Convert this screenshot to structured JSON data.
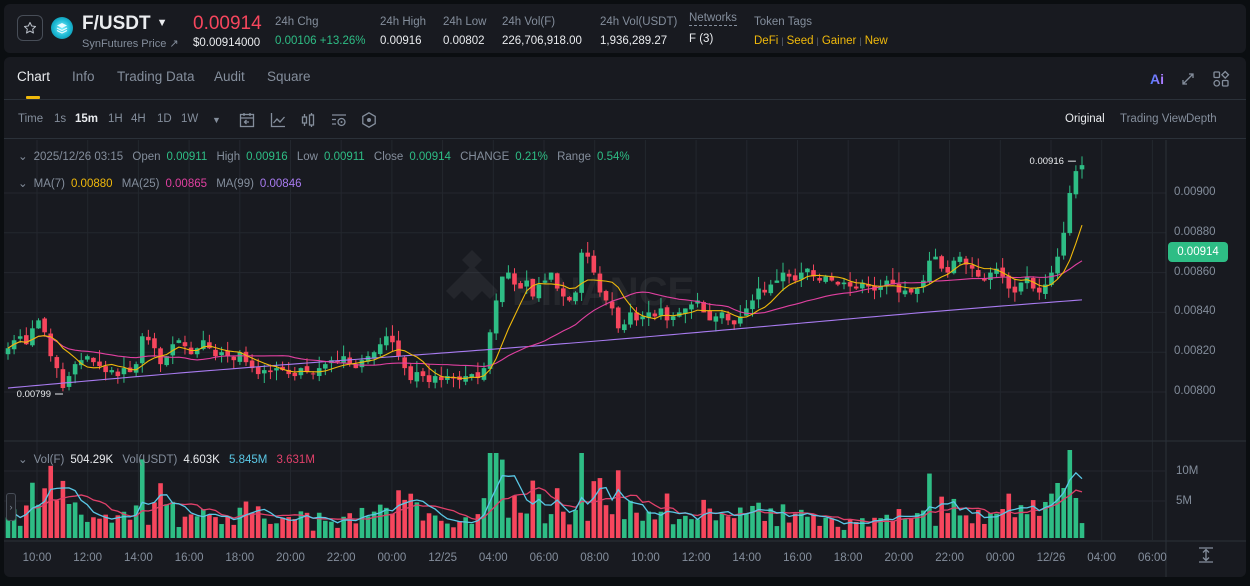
{
  "header": {
    "pair": "F/USDT",
    "source_link": "SynFutures Price ↗",
    "last_price": "0.00914",
    "last_price_usd": "$0.00914000",
    "stats": [
      {
        "label": "24h Chg",
        "value": "0.00106 +13.26%",
        "color": "green"
      },
      {
        "label": "24h High",
        "value": "0.00916"
      },
      {
        "label": "24h Low",
        "value": "0.00802"
      },
      {
        "label": "24h Vol(F)",
        "value": "226,706,918.00"
      },
      {
        "label": "24h Vol(USDT)",
        "value": "1,936,289.27"
      },
      {
        "label": "Networks",
        "value": "F (3)"
      }
    ],
    "token_tags_label": "Token Tags",
    "token_tags": [
      "DeFi",
      "Seed",
      "Gainer",
      "New"
    ]
  },
  "tabs": [
    {
      "label": "Chart",
      "active": true
    },
    {
      "label": "Info"
    },
    {
      "label": "Trading Data"
    },
    {
      "label": "Audit"
    },
    {
      "label": "Square"
    }
  ],
  "top_icons": {
    "ai_label": "Ai"
  },
  "toolbar": {
    "time_label": "Time",
    "intervals": [
      "1s",
      "15m",
      "1H",
      "4H",
      "1D",
      "1W"
    ],
    "active_interval": "15m",
    "views": [
      "Original",
      "Trading View",
      "Depth"
    ],
    "active_view": "Original"
  },
  "ohlc_legend": {
    "datetime": "2025/12/26 03:15",
    "open_label": "Open",
    "open": "0.00911",
    "high_label": "High",
    "high": "0.00916",
    "low_label": "Low",
    "low": "0.00911",
    "close_label": "Close",
    "close": "0.00914",
    "change_label": "CHANGE",
    "change": "0.21%",
    "range_label": "Range",
    "range": "0.54%"
  },
  "ma_legend": {
    "ma7_label": "MA(7)",
    "ma7": "0.00880",
    "ma7_color": "#f0b90b",
    "ma25_label": "MA(25)",
    "ma25": "0.00865",
    "ma25_color": "#e040a0",
    "ma99_label": "MA(99)",
    "ma99": "0.00846",
    "ma99_color": "#a87bf0"
  },
  "vol_legend": {
    "vol_f_label": "Vol(F)",
    "vol_f": "504.29K",
    "vol_usdt_label": "Vol(USDT)",
    "vol_usdt": "4.603K",
    "ma5": "5.845M",
    "ma5_color": "#5ac8e6",
    "ma10": "3.631M",
    "ma10_color": "#e0406a"
  },
  "chart_data": {
    "type": "candlestick",
    "title": "F/USDT 15m",
    "y_axis": {
      "ticks": [
        "0.00900",
        "0.00880",
        "0.00860",
        "0.00840",
        "0.00820",
        "0.00800"
      ],
      "range": [
        0.0078,
        0.0092
      ]
    },
    "x_axis": {
      "ticks": [
        "10:00",
        "12:00",
        "14:00",
        "16:00",
        "18:00",
        "20:00",
        "22:00",
        "00:00",
        "12/25",
        "04:00",
        "06:00",
        "08:00",
        "10:00",
        "12:00",
        "14:00",
        "16:00",
        "18:00",
        "20:00",
        "22:00",
        "00:00",
        "12/26",
        "04:00",
        "06:00"
      ]
    },
    "current_price": "0.00914",
    "high_marker": "0.00916",
    "low_marker": "0.00799",
    "volume_axis": {
      "ticks": [
        "10M",
        "5M"
      ]
    },
    "close_series": [
      0.00822,
      0.00826,
      0.00828,
      0.00824,
      0.00832,
      0.00836,
      0.0083,
      0.00818,
      0.00812,
      0.00802,
      0.00808,
      0.00814,
      0.00816,
      0.00818,
      0.00815,
      0.00813,
      0.0081,
      0.00811,
      0.00808,
      0.00812,
      0.0081,
      0.00814,
      0.00828,
      0.00826,
      0.00822,
      0.00814,
      0.00818,
      0.00824,
      0.00826,
      0.00823,
      0.00819,
      0.00822,
      0.00826,
      0.00822,
      0.00818,
      0.0082,
      0.00818,
      0.00816,
      0.0082,
      0.00815,
      0.00812,
      0.00809,
      0.00811,
      0.0081,
      0.00812,
      0.00811,
      0.00809,
      0.00808,
      0.00812,
      0.0081,
      0.00809,
      0.00812,
      0.00814,
      0.00816,
      0.00815,
      0.00818,
      0.00814,
      0.00812,
      0.00816,
      0.00818,
      0.0082,
      0.00824,
      0.00828,
      0.00825,
      0.00818,
      0.00812,
      0.00806,
      0.0081,
      0.00808,
      0.00805,
      0.00808,
      0.00806,
      0.00808,
      0.00807,
      0.00806,
      0.00808,
      0.00809,
      0.00807,
      0.00812,
      0.0083,
      0.00846,
      0.00858,
      0.0086,
      0.00854,
      0.00852,
      0.00856,
      0.00848,
      0.00854,
      0.00856,
      0.0086,
      0.00852,
      0.00848,
      0.00846,
      0.0085,
      0.0087,
      0.00868,
      0.0086,
      0.0085,
      0.00846,
      0.00842,
      0.00832,
      0.00834,
      0.0084,
      0.00836,
      0.00838,
      0.0084,
      0.00838,
      0.00842,
      0.00836,
      0.00838,
      0.0084,
      0.00842,
      0.00844,
      0.00846,
      0.0084,
      0.00836,
      0.00838,
      0.0084,
      0.00836,
      0.00834,
      0.00838,
      0.00842,
      0.00846,
      0.00852,
      0.0085,
      0.00854,
      0.00856,
      0.0086,
      0.00858,
      0.00856,
      0.0086,
      0.00862,
      0.00858,
      0.00856,
      0.00858,
      0.00856,
      0.00854,
      0.00855,
      0.00853,
      0.00852,
      0.00855,
      0.00853,
      0.00851,
      0.00853,
      0.00856,
      0.00854,
      0.0085,
      0.00851,
      0.0085,
      0.00852,
      0.00856,
      0.00866,
      0.00868,
      0.00862,
      0.0086,
      0.00866,
      0.00868,
      0.00864,
      0.00862,
      0.00858,
      0.00856,
      0.0086,
      0.00862,
      0.00858,
      0.00852,
      0.0085,
      0.00855,
      0.00858,
      0.00852,
      0.0085,
      0.00854,
      0.0086,
      0.00868,
      0.0088,
      0.009,
      0.00911,
      0.00914
    ]
  }
}
